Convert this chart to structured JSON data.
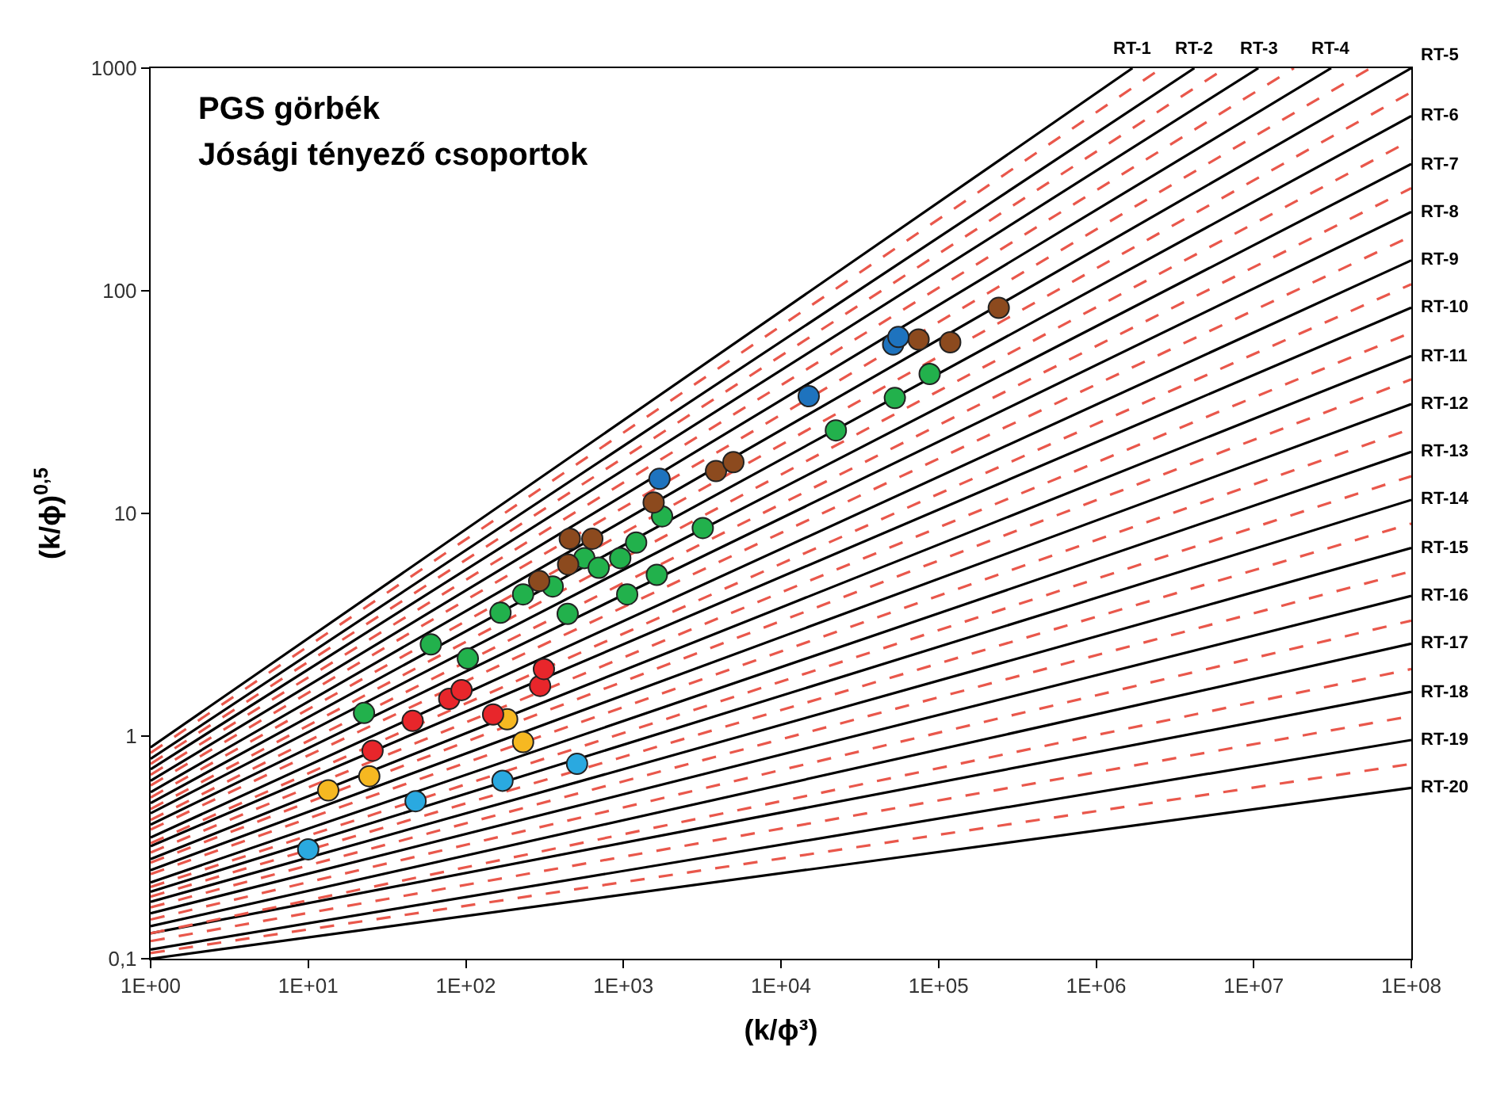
{
  "chart_data": {
    "type": "scatter",
    "title": "PGS görbék",
    "subtitle": "Jósági tényező csoportok",
    "xlabel": "(k/ϕ³)",
    "ylabel": "(k/ϕ)$^{0,5}$",
    "log": "xy",
    "grid": false,
    "xlim": [
      1,
      100000000
    ],
    "ylim": [
      0.1,
      1000
    ],
    "xticks": [
      {
        "value": 1,
        "label": "1E+00"
      },
      {
        "value": 10,
        "label": "1E+01"
      },
      {
        "value": 100,
        "label": "1E+02"
      },
      {
        "value": 1000,
        "label": "1E+03"
      },
      {
        "value": 10000,
        "label": "1E+04"
      },
      {
        "value": 100000,
        "label": "1E+05"
      },
      {
        "value": 1000000,
        "label": "1E+06"
      },
      {
        "value": 10000000,
        "label": "1E+07"
      },
      {
        "value": 100000000,
        "label": "1E+08"
      }
    ],
    "yticks": [
      {
        "value": 0.1,
        "label": "0,1"
      },
      1,
      10,
      100,
      1000
    ],
    "series": [
      {
        "type": "line",
        "name": "RT-1",
        "color": "#000000",
        "line_style": "solid",
        "x": [
          1,
          1700000
        ],
        "values": [
          0.89,
          1000
        ]
      },
      {
        "type": "line",
        "name": "RT-2",
        "color": "#000000",
        "line_style": "solid",
        "x": [
          1,
          4200000
        ],
        "values": [
          0.79,
          1000
        ]
      },
      {
        "type": "line",
        "name": "RT-3",
        "color": "#000000",
        "line_style": "solid",
        "x": [
          1,
          10700000
        ],
        "values": [
          0.71,
          1000
        ]
      },
      {
        "type": "line",
        "name": "RT-4",
        "color": "#000000",
        "line_style": "solid",
        "x": [
          1,
          31000000
        ],
        "values": [
          0.63,
          1000
        ]
      },
      {
        "type": "line",
        "name": "RT-5",
        "color": "#000000",
        "line_style": "solid",
        "x": [
          1,
          100000000
        ],
        "values": [
          0.56,
          1000
        ]
      },
      {
        "type": "line",
        "name": "RT-6",
        "color": "#000000",
        "line_style": "solid",
        "x": [
          1,
          100000000
        ],
        "values": [
          0.5,
          610
        ]
      },
      {
        "type": "line",
        "name": "RT-7",
        "color": "#000000",
        "line_style": "solid",
        "x": [
          1,
          100000000
        ],
        "values": [
          0.45,
          371
        ]
      },
      {
        "type": "line",
        "name": "RT-8",
        "color": "#000000",
        "line_style": "solid",
        "x": [
          1,
          100000000
        ],
        "values": [
          0.4,
          226
        ]
      },
      {
        "type": "line",
        "name": "RT-9",
        "color": "#000000",
        "line_style": "solid",
        "x": [
          1,
          100000000
        ],
        "values": [
          0.35,
          137
        ]
      },
      {
        "type": "line",
        "name": "RT-10",
        "color": "#000000",
        "line_style": "solid",
        "x": [
          1,
          100000000
        ],
        "values": [
          0.32,
          84
        ]
      },
      {
        "type": "line",
        "name": "RT-11",
        "color": "#000000",
        "line_style": "solid",
        "x": [
          1,
          100000000
        ],
        "values": [
          0.28,
          51
        ]
      },
      {
        "type": "line",
        "name": "RT-12",
        "color": "#000000",
        "line_style": "solid",
        "x": [
          1,
          100000000
        ],
        "values": [
          0.25,
          31
        ]
      },
      {
        "type": "line",
        "name": "RT-13",
        "color": "#000000",
        "line_style": "solid",
        "x": [
          1,
          100000000
        ],
        "values": [
          0.22,
          18.9
        ]
      },
      {
        "type": "line",
        "name": "RT-14",
        "color": "#000000",
        "line_style": "solid",
        "x": [
          1,
          100000000
        ],
        "values": [
          0.2,
          11.5
        ]
      },
      {
        "type": "line",
        "name": "RT-15",
        "color": "#000000",
        "line_style": "solid",
        "x": [
          1,
          100000000
        ],
        "values": [
          0.18,
          7.0
        ]
      },
      {
        "type": "line",
        "name": "RT-16",
        "color": "#000000",
        "line_style": "solid",
        "x": [
          1,
          100000000
        ],
        "values": [
          0.16,
          4.26
        ]
      },
      {
        "type": "line",
        "name": "RT-17",
        "color": "#000000",
        "line_style": "solid",
        "x": [
          1,
          100000000
        ],
        "values": [
          0.14,
          2.6
        ]
      },
      {
        "type": "line",
        "name": "RT-18",
        "color": "#000000",
        "line_style": "solid",
        "x": [
          1,
          100000000
        ],
        "values": [
          0.13,
          1.58
        ]
      },
      {
        "type": "line",
        "name": "RT-19",
        "color": "#000000",
        "line_style": "solid",
        "x": [
          1,
          100000000
        ],
        "values": [
          0.11,
          0.96
        ]
      },
      {
        "type": "line",
        "name": "RT-20",
        "color": "#000000",
        "line_style": "solid",
        "x": [
          1,
          100000000
        ],
        "values": [
          0.1,
          0.585
        ]
      },
      {
        "type": "line",
        "color": "#e9574b",
        "line_style": "dashed",
        "x": [
          1,
          2600000
        ],
        "values": [
          0.84,
          1000
        ]
      },
      {
        "type": "line",
        "color": "#e9574b",
        "line_style": "dashed",
        "x": [
          1,
          6600000
        ],
        "values": [
          0.75,
          1000
        ]
      },
      {
        "type": "line",
        "color": "#e9574b",
        "line_style": "dashed",
        "x": [
          1,
          18000000
        ],
        "values": [
          0.67,
          1000
        ]
      },
      {
        "type": "line",
        "color": "#e9574b",
        "line_style": "dashed",
        "x": [
          1,
          55000000
        ],
        "values": [
          0.6,
          1000
        ]
      },
      {
        "type": "line",
        "color": "#e9574b",
        "line_style": "dashed",
        "x": [
          1,
          100000000
        ],
        "values": [
          0.53,
          780
        ]
      },
      {
        "type": "line",
        "color": "#e9574b",
        "line_style": "dashed",
        "x": [
          1,
          100000000
        ],
        "values": [
          0.47,
          475
        ]
      },
      {
        "type": "line",
        "color": "#e9574b",
        "line_style": "dashed",
        "x": [
          1,
          100000000
        ],
        "values": [
          0.42,
          289
        ]
      },
      {
        "type": "line",
        "color": "#e9574b",
        "line_style": "dashed",
        "x": [
          1,
          100000000
        ],
        "values": [
          0.38,
          176
        ]
      },
      {
        "type": "line",
        "color": "#e9574b",
        "line_style": "dashed",
        "x": [
          1,
          100000000
        ],
        "values": [
          0.33,
          107
        ]
      },
      {
        "type": "line",
        "color": "#e9574b",
        "line_style": "dashed",
        "x": [
          1,
          100000000
        ],
        "values": [
          0.3,
          65
        ]
      },
      {
        "type": "line",
        "color": "#e9574b",
        "line_style": "dashed",
        "x": [
          1,
          100000000
        ],
        "values": [
          0.27,
          40
        ]
      },
      {
        "type": "line",
        "color": "#e9574b",
        "line_style": "dashed",
        "x": [
          1,
          100000000
        ],
        "values": [
          0.24,
          24
        ]
      },
      {
        "type": "line",
        "color": "#e9574b",
        "line_style": "dashed",
        "x": [
          1,
          100000000
        ],
        "values": [
          0.21,
          14.7
        ]
      },
      {
        "type": "line",
        "color": "#e9574b",
        "line_style": "dashed",
        "x": [
          1,
          100000000
        ],
        "values": [
          0.19,
          9.0
        ]
      },
      {
        "type": "line",
        "color": "#e9574b",
        "line_style": "dashed",
        "x": [
          1,
          100000000
        ],
        "values": [
          0.17,
          5.5
        ]
      },
      {
        "type": "line",
        "color": "#e9574b",
        "line_style": "dashed",
        "x": [
          1,
          100000000
        ],
        "values": [
          0.15,
          3.3
        ]
      },
      {
        "type": "line",
        "color": "#e9574b",
        "line_style": "dashed",
        "x": [
          1,
          100000000
        ],
        "values": [
          0.13,
          2.0
        ]
      },
      {
        "type": "line",
        "color": "#e9574b",
        "line_style": "dashed",
        "x": [
          1,
          100000000
        ],
        "values": [
          0.12,
          1.23
        ]
      },
      {
        "type": "line",
        "color": "#e9574b",
        "line_style": "dashed",
        "x": [
          1,
          100000000
        ],
        "values": [
          0.106,
          0.75
        ]
      },
      {
        "marker": "circle",
        "color": "#2aa9e0",
        "x": [
          10,
          48,
          171,
          508
        ],
        "values": [
          0.31,
          0.51,
          0.63,
          0.75
        ]
      },
      {
        "marker": "circle",
        "color": "#f6b821",
        "x": [
          13.4,
          24.4,
          183,
          231
        ],
        "values": [
          0.57,
          0.66,
          1.19,
          0.94
        ]
      },
      {
        "marker": "circle",
        "color": "#e8262b",
        "x": [
          25.6,
          46,
          78.5,
          94,
          149,
          296,
          313
        ],
        "values": [
          0.86,
          1.17,
          1.47,
          1.61,
          1.25,
          1.68,
          2.0
        ]
      },
      {
        "marker": "circle",
        "color": "#22b14c",
        "x": [
          22.6,
          60,
          103,
          166,
          443,
          231,
          356,
          565,
          697,
          955,
          1205,
          1057,
          1630,
          1760,
          3190,
          22300,
          52800,
          87800
        ],
        "values": [
          1.27,
          2.58,
          2.23,
          3.58,
          3.54,
          4.33,
          4.7,
          6.3,
          5.7,
          6.3,
          7.4,
          4.33,
          5.3,
          9.7,
          8.6,
          23.6,
          33,
          42.3
        ]
      },
      {
        "marker": "circle",
        "color": "#8c4a1e",
        "x": [
          292,
          446,
          457,
          635,
          1556,
          3870,
          4990,
          74700,
          118600,
          241000
        ],
        "values": [
          4.97,
          5.9,
          7.7,
          7.7,
          11.2,
          15.5,
          17,
          60.4,
          58.7,
          83.8
        ]
      },
      {
        "marker": "circle",
        "color": "#1e73be",
        "x": [
          1695,
          15000,
          51500,
          55600
        ],
        "values": [
          14.3,
          33.6,
          57.4,
          62
        ]
      }
    ]
  }
}
